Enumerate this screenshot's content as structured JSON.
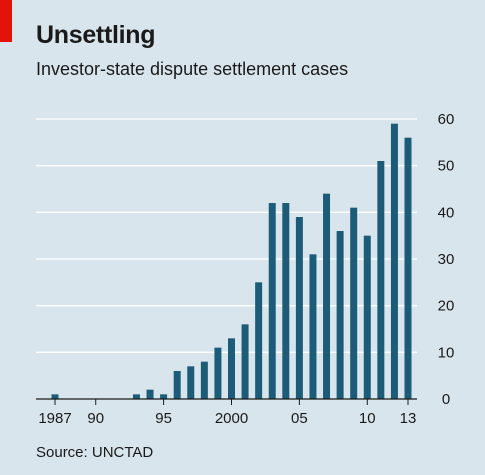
{
  "header": {
    "title": "Unsettling",
    "subtitle": "Investor-state dispute settlement cases"
  },
  "footer": {
    "source": "Source: UNCTAD"
  },
  "colors": {
    "background": "#d9e5ec",
    "bar": "#1c5c78",
    "gridline": "#ffffff",
    "accent": "#e3120b",
    "axis": "#1a1a1a"
  },
  "chart_data": {
    "type": "bar",
    "title": "Unsettling",
    "subtitle": "Investor-state dispute settlement cases",
    "xlabel": "",
    "ylabel": "",
    "categories": [
      1987,
      1988,
      1989,
      1990,
      1991,
      1992,
      1993,
      1994,
      1995,
      1996,
      1997,
      1998,
      1999,
      2000,
      2001,
      2002,
      2003,
      2004,
      2005,
      2006,
      2007,
      2008,
      2009,
      2010,
      2011,
      2012,
      2013
    ],
    "values": [
      1,
      0,
      0,
      0,
      0,
      0,
      1,
      2,
      1,
      6,
      7,
      8,
      11,
      13,
      16,
      25,
      42,
      42,
      39,
      31,
      44,
      36,
      41,
      35,
      51,
      59,
      56
    ],
    "ylim": [
      0,
      60
    ],
    "yticks": [
      0,
      10,
      20,
      30,
      40,
      50,
      60
    ],
    "xtick_labels": [
      {
        "year": 1987,
        "label": "1987"
      },
      {
        "year": 1990,
        "label": "90"
      },
      {
        "year": 1995,
        "label": "95"
      },
      {
        "year": 2000,
        "label": "2000"
      },
      {
        "year": 2005,
        "label": "05"
      },
      {
        "year": 2010,
        "label": "10"
      },
      {
        "year": 2013,
        "label": "13"
      }
    ],
    "grid": true,
    "yaxis_side": "right",
    "legend": "none"
  }
}
